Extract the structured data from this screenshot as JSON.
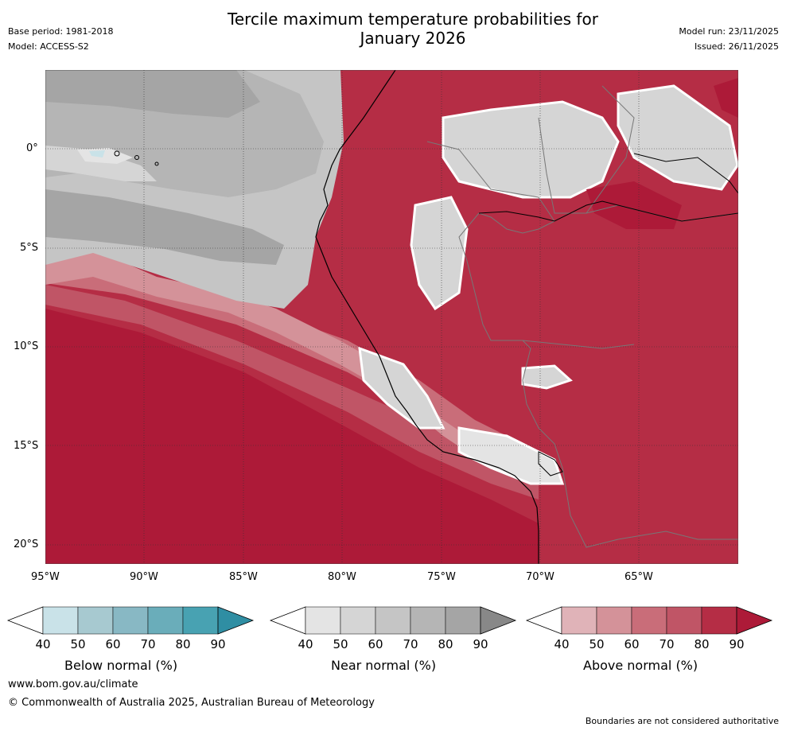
{
  "header": {
    "title_line1": "Tercile maximum temperature probabilities for",
    "title_line2": "January 2026",
    "base_period": "Base period: 1981-2018",
    "model": "Model: ACCESS-S2",
    "model_run": "Model run: 23/11/2025",
    "issued": "Issued: 26/11/2025"
  },
  "map": {
    "lat_labels": [
      "0°",
      "5°S",
      "10°S",
      "15°S",
      "20°S"
    ],
    "lon_labels": [
      "95°W",
      "90°W",
      "85°W",
      "80°W",
      "75°W",
      "70°W",
      "65°W"
    ],
    "icon": "map-region-icon"
  },
  "colorbars": [
    {
      "label": "Below normal (%)",
      "ticks": [
        "40",
        "50",
        "60",
        "70",
        "80",
        "90"
      ],
      "colors": [
        "#ffffff",
        "#c9e2e8",
        "#a7c9d0",
        "#88b8c4",
        "#6aadba",
        "#48a2b2",
        "#2f8ea3"
      ]
    },
    {
      "label": "Near normal (%)",
      "ticks": [
        "40",
        "50",
        "60",
        "70",
        "80",
        "90"
      ],
      "colors": [
        "#ffffff",
        "#e4e4e4",
        "#d5d5d5",
        "#c5c5c5",
        "#b5b5b5",
        "#a5a5a5",
        "#888888"
      ]
    },
    {
      "label": "Above normal (%)",
      "ticks": [
        "40",
        "50",
        "60",
        "70",
        "80",
        "90"
      ],
      "colors": [
        "#ffffff",
        "#e0b3b8",
        "#d49299",
        "#c96d79",
        "#c05566",
        "#b52d45",
        "#ad1a38"
      ]
    }
  ],
  "footer": {
    "url": "www.bom.gov.au/climate",
    "copyright": "© Commonwealth of Australia 2025, Australian Bureau of Meteorology",
    "disclaimer": "Boundaries are not considered authoritative"
  }
}
